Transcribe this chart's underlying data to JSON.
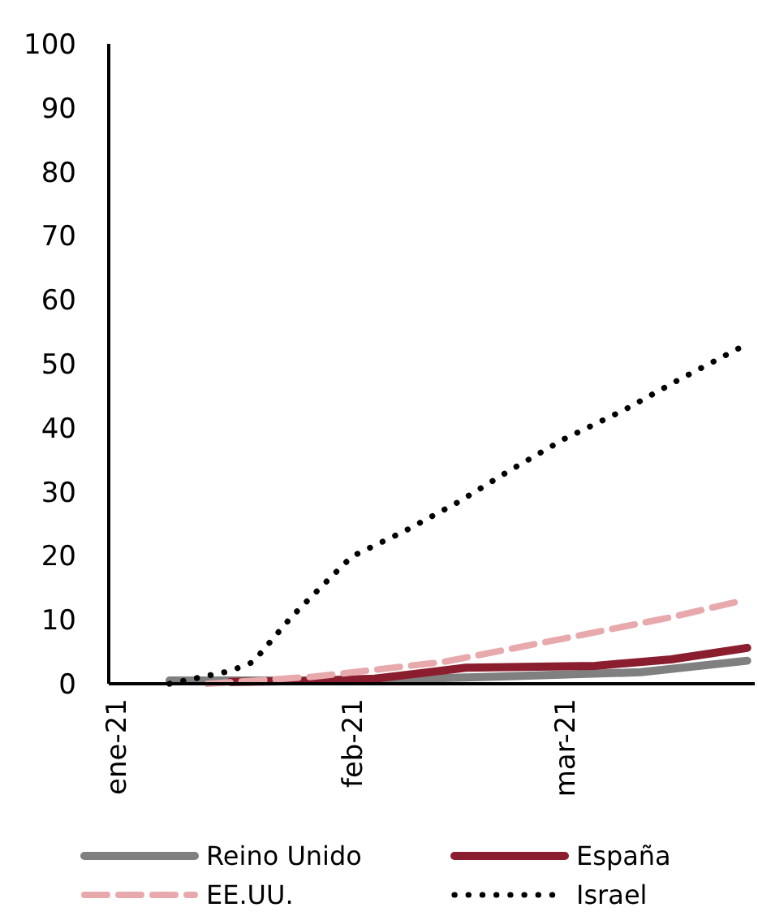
{
  "chart_data": {
    "type": "line",
    "xlim": [
      "2020-12-31",
      "2021-03-26"
    ],
    "xticks": [
      {
        "value": "2021-01-01",
        "label": "ene-21"
      },
      {
        "value": "2021-02-01",
        "label": "feb-21"
      },
      {
        "value": "2021-03-01",
        "label": "mar-21"
      }
    ],
    "ylim": [
      0,
      100
    ],
    "yticks": [
      0,
      10,
      20,
      30,
      40,
      50,
      60,
      70,
      80,
      90,
      100
    ],
    "grid": false,
    "legend": "bottom",
    "series": [
      {
        "name": "Reino Unido",
        "color": "#808080",
        "line_style": "solid",
        "x": [
          "2021-01-08",
          "2021-01-20",
          "2021-02-01",
          "2021-02-20",
          "2021-03-11",
          "2021-03-25"
        ],
        "values": [
          0.5,
          0.5,
          0.5,
          1.1,
          1.8,
          3.6
        ]
      },
      {
        "name": "España",
        "color": "#8b1e2e",
        "line_style": "solid",
        "x": [
          "2021-01-16",
          "2021-01-25",
          "2021-02-04",
          "2021-02-16",
          "2021-03-05",
          "2021-03-15",
          "2021-03-25"
        ],
        "values": [
          0.3,
          0.4,
          0.8,
          2.5,
          2.8,
          3.8,
          5.6
        ]
      },
      {
        "name": "EE.UU.",
        "color": "#e8a9ad",
        "line_style": "dashed",
        "x": [
          "2021-01-13",
          "2021-01-27",
          "2021-02-13",
          "2021-03-01",
          "2021-03-15",
          "2021-03-24"
        ],
        "values": [
          0,
          1.1,
          3.4,
          7.1,
          10.4,
          12.9
        ]
      },
      {
        "name": "Israel",
        "color": "#000000",
        "line_style": "dotted",
        "x": [
          "2021-01-08",
          "2021-01-16",
          "2021-01-19",
          "2021-01-24",
          "2021-01-28",
          "2021-02-01",
          "2021-02-08",
          "2021-02-15",
          "2021-02-22",
          "2021-03-01",
          "2021-03-09",
          "2021-03-16",
          "2021-03-25"
        ],
        "values": [
          0,
          2,
          3.4,
          10.4,
          15.2,
          19.9,
          23.9,
          28.4,
          33.5,
          38.3,
          42.9,
          47.5,
          53.1
        ]
      }
    ]
  }
}
